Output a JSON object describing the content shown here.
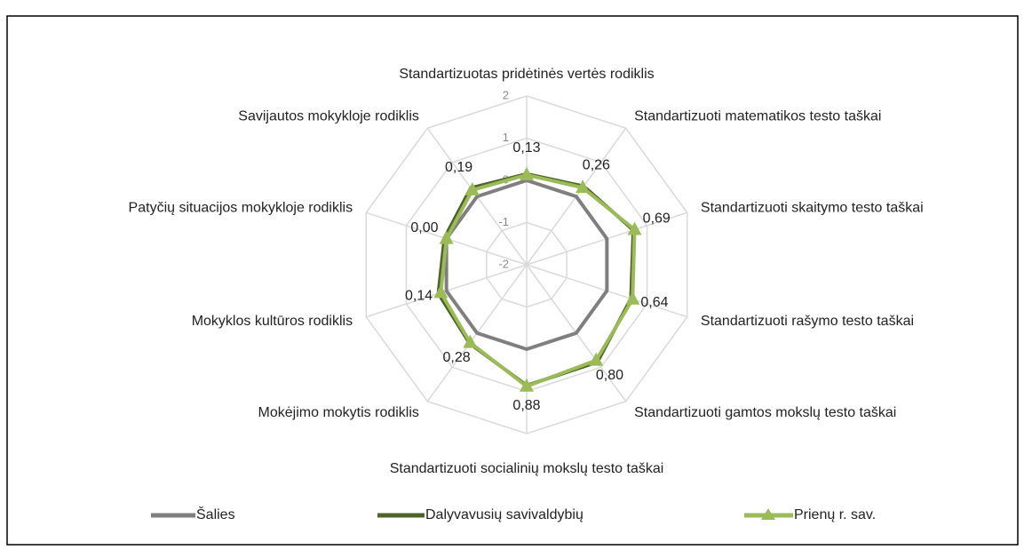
{
  "chart_data": {
    "type": "radar",
    "categories": [
      "Standartizuotas pridėtinės vertės rodiklis",
      "Standartizuoti matematikos testo taškai",
      "Standartizuoti skaitymo testo taškai",
      "Standartizuoti rašymo testo taškai",
      "Standartizuoti gamtos mokslų testo taškai",
      "Standartizuoti socialinių mokslų testo taškai",
      "Mokėjimo mokytis rodiklis",
      "Mokyklos kultūros rodiklis",
      "Patyčių situacijos mokykloje rodiklis",
      "Savijautos mokykloje rodiklis"
    ],
    "series": [
      {
        "name": "Šalies",
        "color": "#7f7f7f",
        "values": [
          0,
          0,
          0,
          0,
          0,
          0,
          0,
          0,
          0,
          0
        ]
      },
      {
        "name": "Dalyvavusių savivaldybių",
        "color": "#4f6228",
        "values": [
          0.15,
          0.3,
          0.66,
          0.6,
          0.85,
          0.86,
          0.3,
          0.2,
          0.05,
          0.25
        ]
      },
      {
        "name": "Prienų r. sav.",
        "color": "#9bbb59",
        "marker": "triangle",
        "values": [
          0.13,
          0.26,
          0.69,
          0.64,
          0.8,
          0.88,
          0.28,
          0.14,
          0.0,
          0.19
        ],
        "value_labels": [
          "0,13",
          "0,26",
          "0,69",
          "0,64",
          "0,80",
          "0,88",
          "0,28",
          "0,14",
          "0,00",
          "0,19"
        ]
      }
    ],
    "ylim": [
      -2,
      2
    ],
    "yticks": [
      -2,
      -1,
      0,
      1,
      2
    ],
    "grid": true,
    "legend": "bottom"
  }
}
